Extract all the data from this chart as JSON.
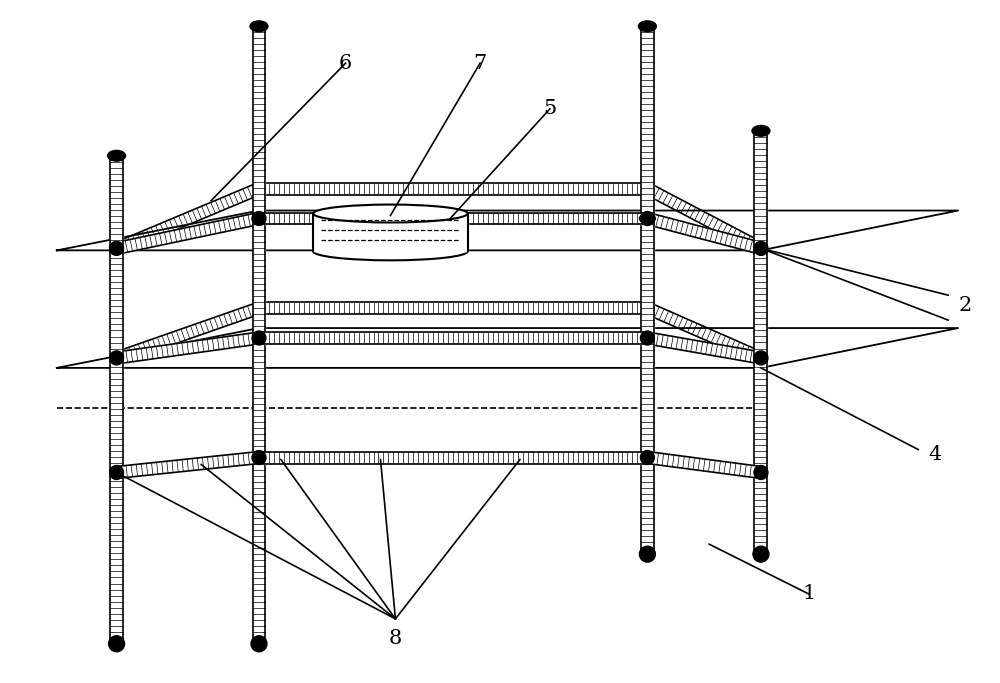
{
  "bg_color": "#ffffff",
  "line_color": "#000000",
  "fig_width": 10.0,
  "fig_height": 6.83,
  "dpi": 100,
  "label_fontsize": 15
}
